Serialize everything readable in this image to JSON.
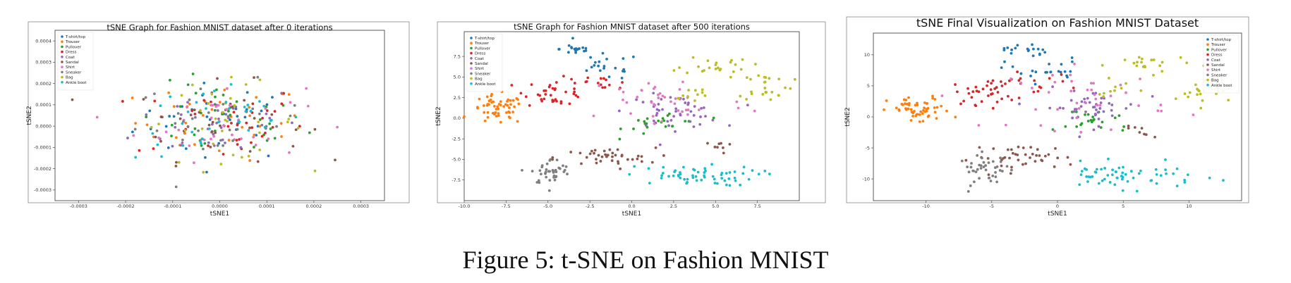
{
  "figure": {
    "caption": "Figure 5: t-SNE on Fashion MNIST"
  },
  "legend_labels": [
    "T-shirt/top",
    "Trouser",
    "Pullover",
    "Dress",
    "Coat",
    "Sandal",
    "Shirt",
    "Sneaker",
    "Bag",
    "Ankle boot"
  ],
  "colors": [
    "#1f77b4",
    "#ff7f0e",
    "#2ca02c",
    "#d62728",
    "#9467bd",
    "#8c564b",
    "#e377c2",
    "#7f7f7f",
    "#bcbd22",
    "#17becf"
  ],
  "chart_data": [
    {
      "type": "scatter",
      "title": "tSNE Graph for Fashion MNIST dataset after 0 iterations",
      "xlabel": "tSNE1",
      "ylabel": "tSNE2",
      "xlim": [
        -0.00035,
        0.00035
      ],
      "ylim": [
        -0.00035,
        0.00045
      ],
      "xticks": [
        -0.0003,
        -0.0002,
        -0.0001,
        0.0,
        0.0001,
        0.0002,
        0.0003
      ],
      "xtick_labels": [
        "-0.0003",
        "-0.0002",
        "-0.0001",
        "0.0000",
        "0.0001",
        "0.0002",
        "0.0003"
      ],
      "yticks": [
        -0.0003,
        -0.0002,
        -0.0001,
        0.0,
        0.0001,
        0.0002,
        0.0003,
        0.0004
      ],
      "ytick_labels": [
        "-0.0003",
        "-0.0002",
        "-0.0001",
        "0.0000",
        "0.0001",
        "0.0002",
        "0.0003",
        "0.0004"
      ],
      "legend_position": "top-left",
      "series": [
        {
          "name": "T-shirt/top",
          "clusters": [
            {
              "cx": 0.0,
              "cy": 2e-05,
              "sx": 9e-05,
              "sy": 9e-05,
              "n": 35
            }
          ]
        },
        {
          "name": "Trouser",
          "clusters": [
            {
              "cx": 0.0,
              "cy": 2e-05,
              "sx": 9e-05,
              "sy": 9e-05,
              "n": 35
            }
          ]
        },
        {
          "name": "Pullover",
          "clusters": [
            {
              "cx": 0.0,
              "cy": 2e-05,
              "sx": 9e-05,
              "sy": 9e-05,
              "n": 35
            }
          ]
        },
        {
          "name": "Dress",
          "clusters": [
            {
              "cx": 0.0,
              "cy": 2e-05,
              "sx": 9e-05,
              "sy": 9e-05,
              "n": 35
            }
          ]
        },
        {
          "name": "Coat",
          "clusters": [
            {
              "cx": 0.0,
              "cy": 2e-05,
              "sx": 9e-05,
              "sy": 9e-05,
              "n": 35
            }
          ]
        },
        {
          "name": "Sandal",
          "clusters": [
            {
              "cx": 0.0,
              "cy": 2e-05,
              "sx": 9e-05,
              "sy": 9e-05,
              "n": 35
            }
          ]
        },
        {
          "name": "Shirt",
          "clusters": [
            {
              "cx": 0.0,
              "cy": 2e-05,
              "sx": 9e-05,
              "sy": 9e-05,
              "n": 35
            }
          ]
        },
        {
          "name": "Sneaker",
          "clusters": [
            {
              "cx": 0.0,
              "cy": 2e-05,
              "sx": 9e-05,
              "sy": 9e-05,
              "n": 35
            }
          ]
        },
        {
          "name": "Bag",
          "clusters": [
            {
              "cx": 0.0,
              "cy": 2e-05,
              "sx": 9e-05,
              "sy": 9e-05,
              "n": 35
            }
          ]
        },
        {
          "name": "Ankle boot",
          "clusters": [
            {
              "cx": 0.0,
              "cy": 2e-05,
              "sx": 9e-05,
              "sy": 9e-05,
              "n": 35
            }
          ]
        }
      ]
    },
    {
      "type": "scatter",
      "title": "tSNE Graph for Fashion MNIST dataset after 500 iterations",
      "xlabel": "tSNE1",
      "ylabel": "tSNE2",
      "xlim": [
        -10,
        10
      ],
      "ylim": [
        -10,
        10.5
      ],
      "xticks": [
        -10,
        -7.5,
        -5,
        -2.5,
        0,
        2.5,
        5,
        7.5
      ],
      "xtick_labels": [
        "-10.0",
        "-7.5",
        "-5.0",
        "-2.5",
        "0.0",
        "2.5",
        "5.0",
        "7.5"
      ],
      "yticks": [
        -7.5,
        -5,
        -2.5,
        0,
        2.5,
        5,
        7.5
      ],
      "ytick_labels": [
        "-7.5",
        "-5.0",
        "-2.5",
        "0.0",
        "2.5",
        "5.0",
        "7.5"
      ],
      "legend_position": "top-left",
      "series": [
        {
          "name": "T-shirt/top",
          "clusters": [
            {
              "cx": -3.3,
              "cy": 8.4,
              "sx": 0.5,
              "sy": 0.4,
              "n": 18
            },
            {
              "cx": -1.5,
              "cy": 6.2,
              "sx": 1.0,
              "sy": 0.8,
              "n": 20
            }
          ]
        },
        {
          "name": "Trouser",
          "clusters": [
            {
              "cx": -8.0,
              "cy": 1.0,
              "sx": 0.8,
              "sy": 0.9,
              "n": 55
            }
          ]
        },
        {
          "name": "Pullover",
          "clusters": [
            {
              "cx": 2.0,
              "cy": -0.5,
              "sx": 1.2,
              "sy": 0.8,
              "n": 22
            }
          ]
        },
        {
          "name": "Dress",
          "clusters": [
            {
              "cx": -4.6,
              "cy": 3.2,
              "sx": 0.9,
              "sy": 0.8,
              "n": 35
            },
            {
              "cx": -2.0,
              "cy": 4.0,
              "sx": 1.0,
              "sy": 0.6,
              "n": 15
            }
          ]
        },
        {
          "name": "Coat",
          "clusters": [
            {
              "cx": 2.5,
              "cy": 0.8,
              "sx": 1.4,
              "sy": 1.0,
              "n": 45
            }
          ]
        },
        {
          "name": "Sandal",
          "clusters": [
            {
              "cx": -1.6,
              "cy": -4.8,
              "sx": 1.5,
              "sy": 0.6,
              "n": 40
            },
            {
              "cx": 5.2,
              "cy": -3.5,
              "sx": 0.4,
              "sy": 0.4,
              "n": 8
            }
          ]
        },
        {
          "name": "Shirt",
          "clusters": [
            {
              "cx": 2.0,
              "cy": 2.0,
              "sx": 2.5,
              "sy": 1.8,
              "n": 40
            }
          ]
        },
        {
          "name": "Sneaker",
          "clusters": [
            {
              "cx": -4.8,
              "cy": -6.5,
              "sx": 0.6,
              "sy": 0.8,
              "n": 40
            }
          ]
        },
        {
          "name": "Bag",
          "clusters": [
            {
              "cx": 5.0,
              "cy": 6.5,
              "sx": 1.0,
              "sy": 0.6,
              "n": 22
            },
            {
              "cx": 8.0,
              "cy": 4.0,
              "sx": 0.8,
              "sy": 0.9,
              "n": 25
            },
            {
              "cx": 3.5,
              "cy": 2.8,
              "sx": 0.7,
              "sy": 0.6,
              "n": 10
            }
          ]
        },
        {
          "name": "Ankle boot",
          "clusters": [
            {
              "cx": 3.5,
              "cy": -7.0,
              "sx": 2.0,
              "sy": 0.6,
              "n": 60
            }
          ]
        }
      ]
    },
    {
      "type": "scatter",
      "title": "tSNE Final Visualization on Fashion MNIST Dataset",
      "xlabel": "tSNE1",
      "ylabel": "tSNE2",
      "xlim": [
        -14,
        14
      ],
      "ylim": [
        -13.5,
        13.5
      ],
      "xticks": [
        -10,
        -5,
        0,
        5,
        10
      ],
      "xtick_labels": [
        "-10",
        "-5",
        "0",
        "5",
        "10"
      ],
      "yticks": [
        -10,
        -5,
        0,
        5,
        10
      ],
      "ytick_labels": [
        "-10",
        "-5",
        "0",
        "5",
        "10"
      ],
      "legend_position": "top-right",
      "series": [
        {
          "name": "T-shirt/top",
          "clusters": [
            {
              "cx": -2.5,
              "cy": 10.8,
              "sx": 0.8,
              "sy": 0.6,
              "n": 18
            },
            {
              "cx": -1.0,
              "cy": 7.5,
              "sx": 1.5,
              "sy": 1.0,
              "n": 22
            }
          ]
        },
        {
          "name": "Trouser",
          "clusters": [
            {
              "cx": -10.5,
              "cy": 1.0,
              "sx": 1.2,
              "sy": 1.1,
              "n": 55
            }
          ]
        },
        {
          "name": "Pullover",
          "clusters": [
            {
              "cx": 3.0,
              "cy": -0.5,
              "sx": 1.5,
              "sy": 1.2,
              "n": 22
            }
          ]
        },
        {
          "name": "Dress",
          "clusters": [
            {
              "cx": -5.5,
              "cy": 4.0,
              "sx": 1.2,
              "sy": 1.0,
              "n": 35
            },
            {
              "cx": -2.0,
              "cy": 5.5,
              "sx": 1.5,
              "sy": 0.8,
              "n": 15
            }
          ]
        },
        {
          "name": "Coat",
          "clusters": [
            {
              "cx": 2.5,
              "cy": 1.5,
              "sx": 1.8,
              "sy": 1.5,
              "n": 45
            }
          ]
        },
        {
          "name": "Sandal",
          "clusters": [
            {
              "cx": -2.5,
              "cy": -6.5,
              "sx": 2.0,
              "sy": 1.0,
              "n": 40
            },
            {
              "cx": 6.5,
              "cy": -2.5,
              "sx": 0.8,
              "sy": 0.5,
              "n": 8
            }
          ]
        },
        {
          "name": "Shirt",
          "clusters": [
            {
              "cx": 2.5,
              "cy": 3.0,
              "sx": 3.0,
              "sy": 2.5,
              "n": 40
            }
          ]
        },
        {
          "name": "Sneaker",
          "clusters": [
            {
              "cx": -5.5,
              "cy": -8.5,
              "sx": 1.0,
              "sy": 1.2,
              "n": 40
            }
          ]
        },
        {
          "name": "Bag",
          "clusters": [
            {
              "cx": 7.0,
              "cy": 8.5,
              "sx": 1.5,
              "sy": 0.8,
              "n": 22
            },
            {
              "cx": 11.0,
              "cy": 4.5,
              "sx": 1.0,
              "sy": 1.3,
              "n": 25
            },
            {
              "cx": 5.0,
              "cy": 4.0,
              "sx": 1.0,
              "sy": 1.0,
              "n": 10
            }
          ]
        },
        {
          "name": "Ankle boot",
          "clusters": [
            {
              "cx": 5.0,
              "cy": -9.5,
              "sx": 2.8,
              "sy": 1.0,
              "n": 60
            }
          ]
        }
      ]
    }
  ]
}
